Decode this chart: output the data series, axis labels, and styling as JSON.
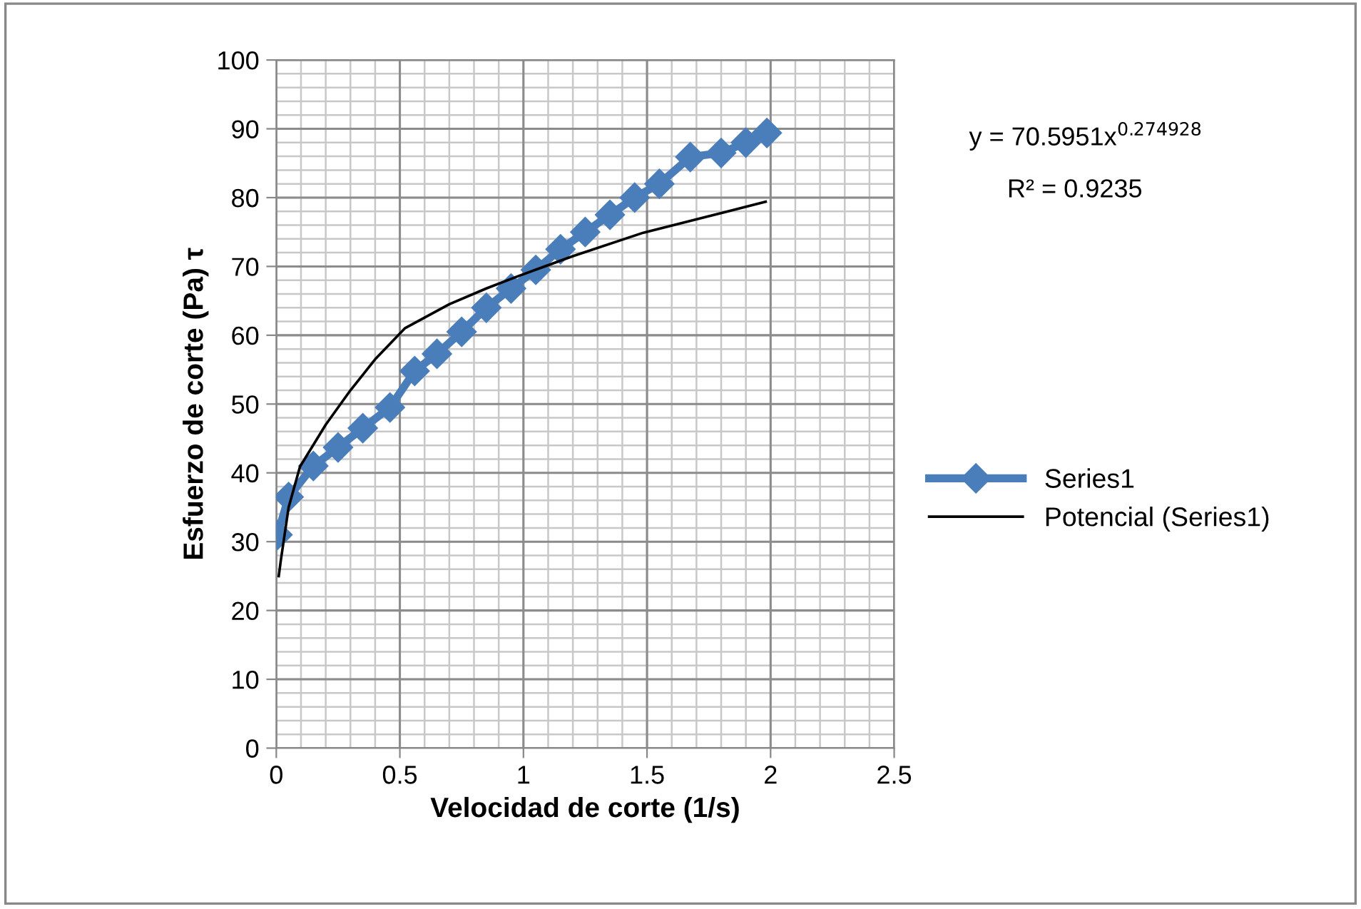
{
  "chart_data": {
    "type": "line",
    "xlabel": "Velocidad de corte (1/s)",
    "ylabel": "Esfuerzo de corte (Pa) τ",
    "xlim": [
      0,
      2.5
    ],
    "xticks": [
      0,
      0.5,
      1,
      1.5,
      2,
      2.5
    ],
    "ylim": [
      0,
      100
    ],
    "yticks": [
      0,
      10,
      20,
      30,
      40,
      50,
      60,
      70,
      80,
      90,
      100
    ],
    "grid": true,
    "legend": "right",
    "marker": "diamond",
    "annotations": [
      "y = 70.5951x$^{0.274928}$",
      "R² = 0.9235"
    ],
    "series": [
      {
        "name": "Series1",
        "color": "#4a7ebb",
        "line_style": "solid",
        "x": [
          0.005,
          0.05,
          0.15,
          0.25,
          0.35,
          0.46,
          0.56,
          0.65,
          0.75,
          0.85,
          0.95,
          1.05,
          1.15,
          1.25,
          1.35,
          1.45,
          1.55,
          1.675,
          1.8,
          1.9,
          1.985
        ],
        "values": [
          31,
          36.5,
          41,
          43.7,
          46.5,
          49.5,
          54.8,
          57.3,
          60.5,
          64,
          66.8,
          69.5,
          72.5,
          75,
          77.5,
          80,
          82,
          85.9,
          86.5,
          88,
          89.4
        ]
      },
      {
        "name": "Potencial (Series1)",
        "color": "#000000",
        "marker": "none",
        "line_style": "solid",
        "x": [
          0.01,
          0.018,
          0.05,
          0.096,
          0.2,
          0.23,
          0.3,
          0.4,
          0.52,
          0.7,
          0.85,
          0.98,
          1.2,
          1.485,
          1.75,
          1.98
        ],
        "values": [
          25,
          27.2,
          35,
          40.9,
          47,
          48.5,
          52,
          56.5,
          61,
          64.5,
          66.8,
          68.6,
          71.5,
          74.9,
          77.3,
          79.4
        ]
      }
    ]
  }
}
